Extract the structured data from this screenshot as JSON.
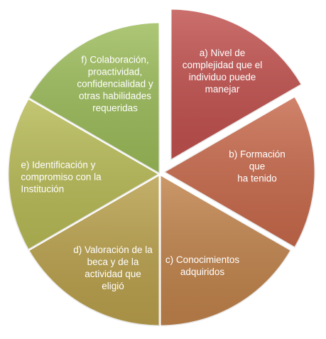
{
  "segments": [
    {
      "label": "a) Nivel de\ncomplejidad que el\nindividuo puede\nmanejar",
      "color": "#c0504d"
    },
    {
      "label": "b) Formación que\nha tenido",
      "color": "#c7694b"
    },
    {
      "label": "c) Conocimientos\nadquiridos",
      "color": "#c0824a"
    },
    {
      "label": "d) Valoración de la\nbeca y de la\nactividad que\neligió",
      "color": "#b9a04c"
    },
    {
      "label": "e) Identificación y\ncompromiso con la\nInstitución",
      "color": "#b7ba55"
    },
    {
      "label": "f) Colaboración,\nproactividad,\nconfidencialidad y\notras habilidades\nrequeridas",
      "color": "#9bbb59"
    }
  ]
}
